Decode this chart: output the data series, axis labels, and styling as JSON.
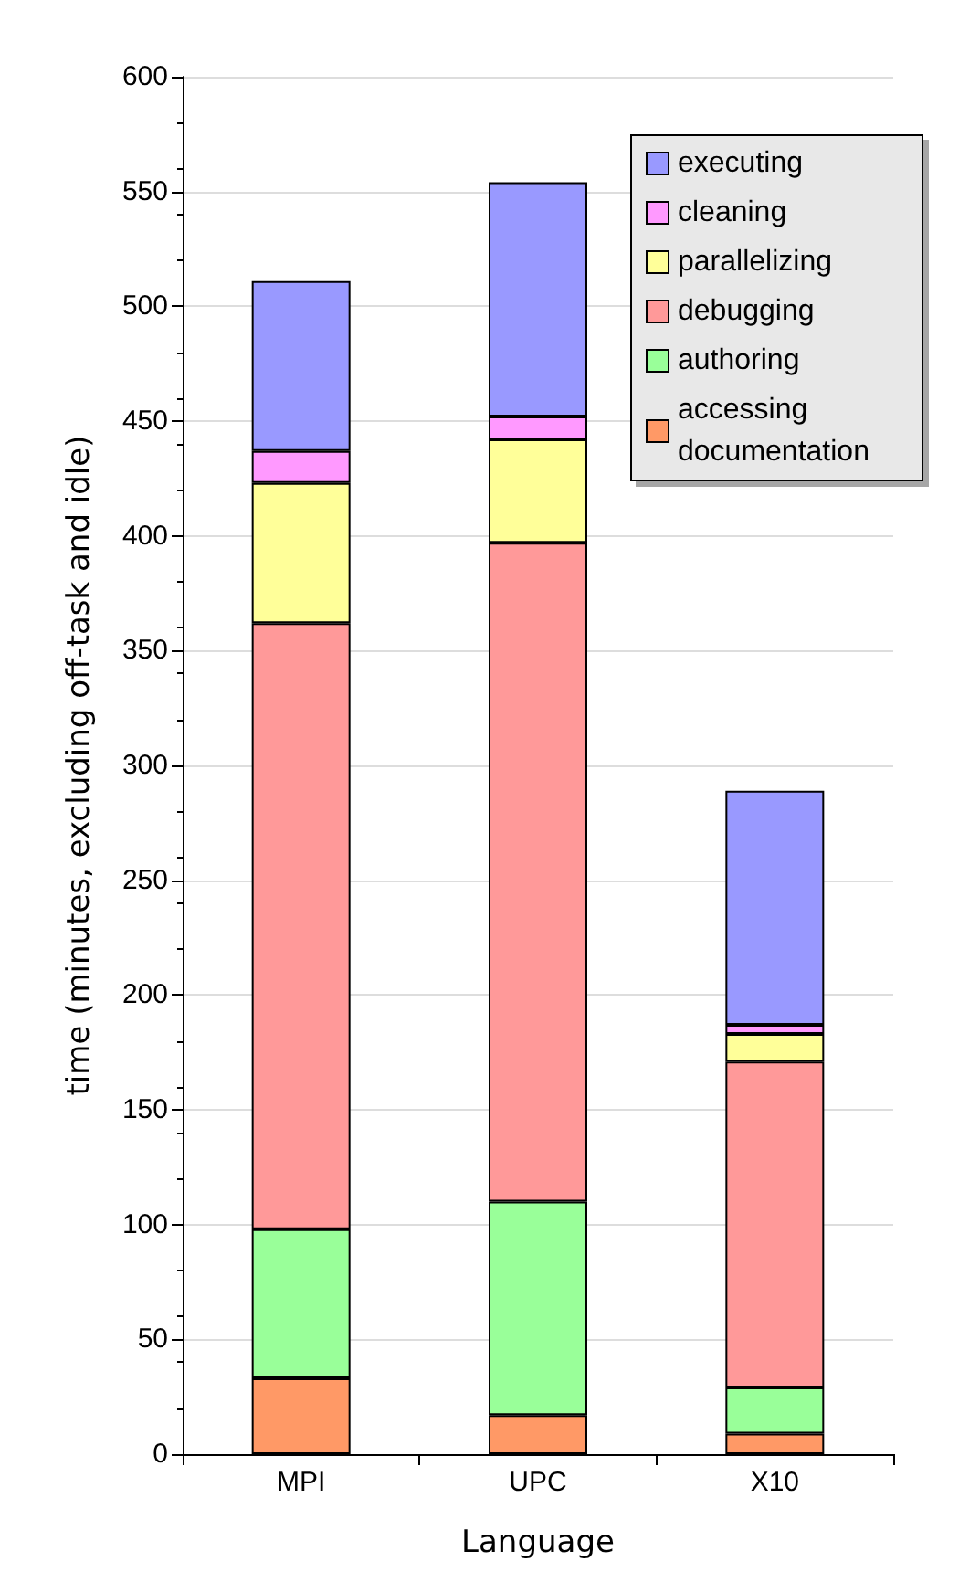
{
  "chart_data": {
    "type": "bar",
    "stacked": true,
    "xlabel": "Language",
    "ylabel": "time (minutes, excluding off-task and idle)",
    "categories": [
      "MPI",
      "UPC",
      "X10"
    ],
    "series": [
      {
        "name": "accessing documentation",
        "color": "#ff9966",
        "values": [
          33,
          17,
          9
        ]
      },
      {
        "name": "authoring",
        "color": "#99ff99",
        "values": [
          65,
          93,
          20
        ]
      },
      {
        "name": "debugging",
        "color": "#ff9999",
        "values": [
          264,
          287,
          142
        ]
      },
      {
        "name": "parallelizing",
        "color": "#ffff99",
        "values": [
          61,
          45,
          12
        ]
      },
      {
        "name": "cleaning",
        "color": "#ff99ff",
        "values": [
          14,
          10,
          4
        ]
      },
      {
        "name": "executing",
        "color": "#9999ff",
        "values": [
          74,
          102,
          102
        ]
      }
    ],
    "ylim": [
      0,
      600
    ],
    "yticks": [
      0,
      50,
      100,
      150,
      200,
      250,
      300,
      350,
      400,
      450,
      500,
      550,
      600
    ],
    "grid": "y",
    "legend": "top right"
  }
}
